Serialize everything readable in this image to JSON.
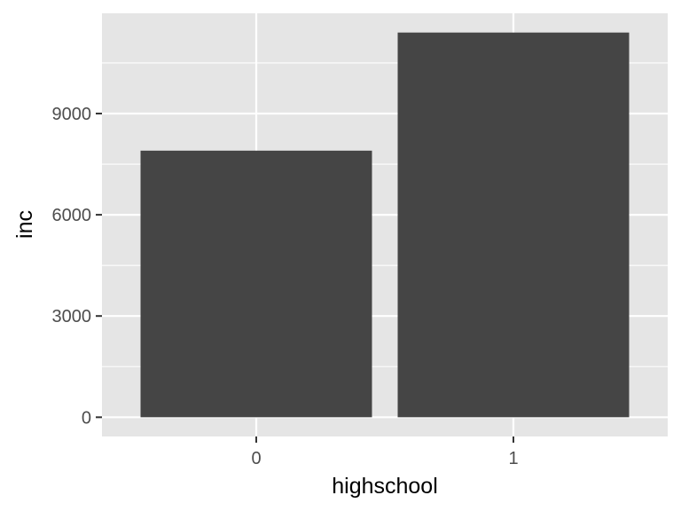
{
  "chart_data": {
    "type": "bar",
    "categories": [
      "0",
      "1"
    ],
    "values": [
      7900,
      11400
    ],
    "xlabel": "highschool",
    "ylabel": "inc",
    "ylim": [
      -570,
      11970
    ],
    "yticks": [
      0,
      3000,
      6000,
      9000
    ],
    "ytick_labels": [
      "0",
      "3000",
      "6000",
      "9000"
    ],
    "grid": true,
    "colors": {
      "panel": "#e5e5e5",
      "grid": "#ffffff",
      "bar": "#454545",
      "tick_text": "#4d4d4d",
      "tick_mark": "#333333",
      "title_text": "#000000"
    }
  }
}
